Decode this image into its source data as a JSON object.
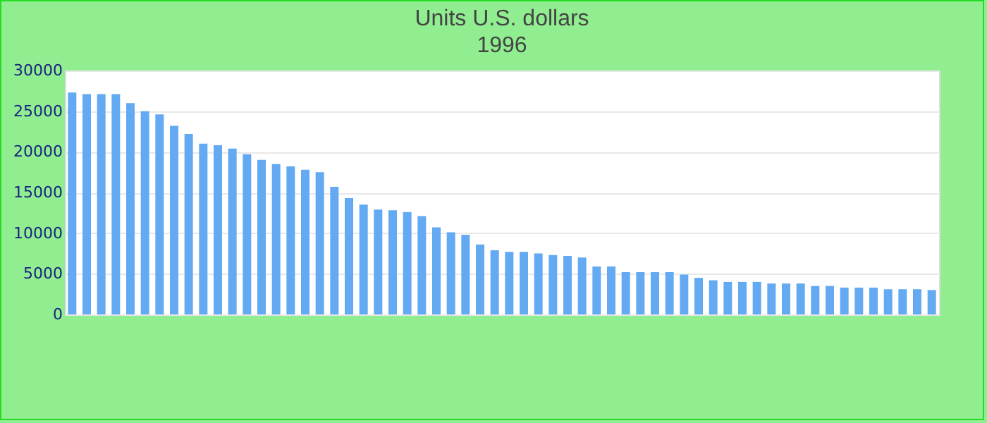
{
  "chart_data": {
    "type": "bar",
    "title": "Units U.S. dollars",
    "subtitle": "1996",
    "categories": [
      null,
      null,
      null,
      null,
      null,
      null,
      null,
      null,
      null,
      null,
      null,
      null,
      null,
      null,
      null,
      null,
      null,
      null,
      null,
      null,
      null,
      null,
      null,
      null,
      null,
      null,
      null,
      null,
      null,
      null,
      null,
      null,
      null,
      null,
      null,
      null,
      null,
      null,
      null,
      null,
      null,
      null,
      null,
      null,
      null,
      null,
      null,
      null,
      null,
      null,
      null,
      null,
      null,
      null,
      null,
      null,
      null,
      null,
      null,
      null
    ],
    "values": [
      27300,
      27100,
      27100,
      27100,
      26000,
      25000,
      24600,
      23200,
      22200,
      21000,
      20800,
      20400,
      19700,
      19000,
      18500,
      18200,
      17800,
      17500,
      15700,
      14300,
      13500,
      12900,
      12800,
      12600,
      12100,
      10700,
      10100,
      9800,
      8600,
      7900,
      7700,
      7700,
      7500,
      7300,
      7200,
      7000,
      5900,
      5900,
      5200,
      5200,
      5200,
      5200,
      4900,
      4500,
      4200,
      4000,
      4000,
      4000,
      3800,
      3800,
      3800,
      3500,
      3500,
      3300,
      3300,
      3300,
      3100,
      3100,
      3100,
      3000
    ],
    "color": "#63aaf2",
    "ylim": [
      0,
      30000
    ],
    "yticks": [
      0,
      5000,
      10000,
      15000,
      20000,
      25000,
      30000
    ],
    "grid": "y"
  }
}
